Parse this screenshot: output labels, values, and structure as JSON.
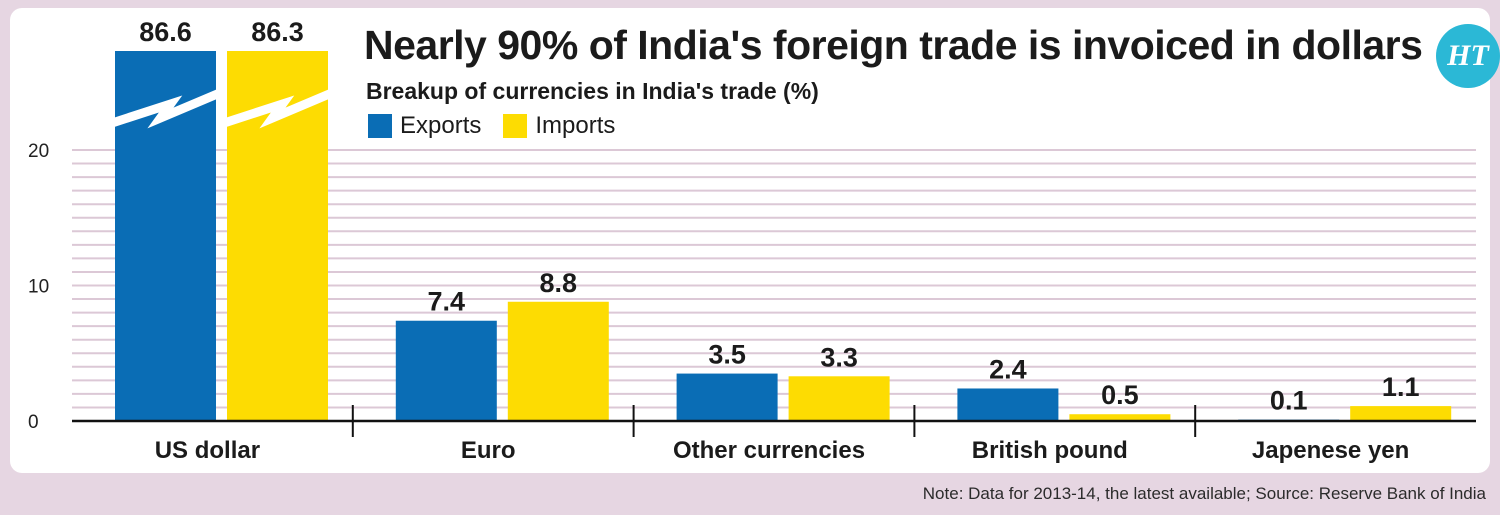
{
  "header": {
    "title": "Nearly 90% of India's foreign trade is invoiced in dollars",
    "subtitle": "Breakup of currencies in India's trade (%)",
    "logo_text": "HT"
  },
  "footer": {
    "note": "Note: Data for 2013-14, the latest available; Source: Reserve Bank of India"
  },
  "colors": {
    "exports": "#0a6db5",
    "imports": "#fddc02",
    "gridline": "#dcc8d6",
    "background": "#e6d6e2"
  },
  "chart_data": {
    "type": "bar",
    "categories": [
      "US dollar",
      "Euro",
      "Other currencies",
      "British pound",
      "Japenese yen"
    ],
    "series": [
      {
        "name": "Exports",
        "values": [
          86.6,
          7.4,
          3.5,
          2.4,
          0.1
        ]
      },
      {
        "name": "Imports",
        "values": [
          86.3,
          8.8,
          3.3,
          0.5,
          1.1
        ]
      }
    ],
    "yticks": [
      "0",
      "10",
      "20"
    ],
    "ylim": [
      0,
      20
    ],
    "axis_break": true,
    "grid": true,
    "legend": "top-left"
  }
}
